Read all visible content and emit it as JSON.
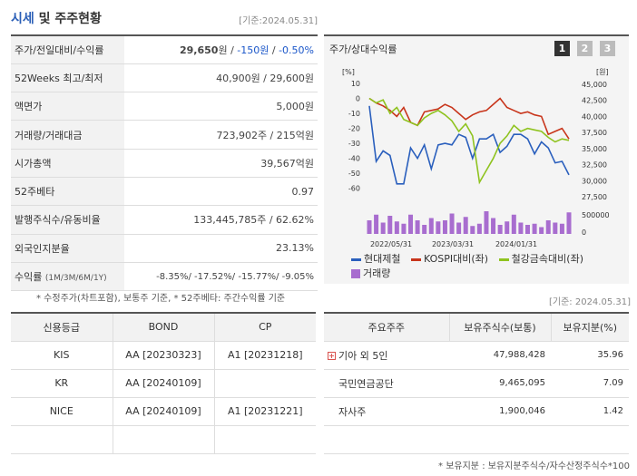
{
  "header": {
    "title_blue": "시세",
    "title_rest": " 및 주주현황",
    "base_date": "[기준:2024.05.31]"
  },
  "stock_info": {
    "rows": [
      {
        "label": "주가/전일대비/수익률"
      },
      {
        "label": "52Weeks 최고/최저",
        "value": "40,900원 / 29,600원"
      },
      {
        "label": "액면가",
        "value": "5,000원"
      },
      {
        "label": "거래량/거래대금",
        "value": "723,902주 / 215억원"
      },
      {
        "label": "시가총액",
        "value": "39,567억원"
      },
      {
        "label": "52주베타",
        "value": "0.97"
      },
      {
        "label": "발행주식수/유동비율",
        "value": "133,445,785주 / 62.62%"
      },
      {
        "label": "외국인지분율",
        "value": "23.13%"
      }
    ],
    "price": "29,650",
    "price_unit": "원",
    "price_change": "-150원",
    "price_rate": "-0.50%",
    "return_label": "수익률",
    "return_sublabel": "(1M/3M/6M/1Y)",
    "return_value": "-8.35%/ -17.52%/ -15.77%/ -9.05%",
    "note": "* 수정주가(차트포함), 보통주 기준, * 52주베타: 주간수익률 기준"
  },
  "chart_panel": {
    "title": "주가/상대수익률",
    "tabs": [
      "1",
      "2",
      "3"
    ],
    "base_date": "[기준: 2024.05.31]"
  },
  "chart_data": {
    "type": "line",
    "left_axis": {
      "label": "[%]",
      "ticks": [
        "10",
        "0",
        "-10",
        "-20",
        "-30",
        "-40",
        "-50",
        "-60"
      ],
      "range": [
        -65,
        10
      ]
    },
    "right_axis": {
      "label": "[원]",
      "ticks": [
        "45,000",
        "42,500",
        "40,000",
        "37,500",
        "35,000",
        "32,500",
        "30,000",
        "27,500"
      ],
      "range": [
        27500,
        45000
      ]
    },
    "volume_axis": {
      "ticks": [
        "500000",
        "0"
      ]
    },
    "x_ticks": [
      "2022/05/31",
      "2023/03/31",
      "2024/01/31"
    ],
    "series": [
      {
        "name": "현대제철",
        "color": "#2a5fbd",
        "axis": "left",
        "values": [
          -5,
          -42,
          -35,
          -38,
          -57,
          -57,
          -33,
          -40,
          -31,
          -47,
          -31,
          -30,
          -31,
          -24,
          -26,
          -40,
          -27,
          -27,
          -24,
          -36,
          -32,
          -24,
          -24,
          -27,
          -37,
          -29,
          -33,
          -43,
          -42,
          -51
        ]
      },
      {
        "name": "KOSPI대비(좌)",
        "color": "#c8351b",
        "axis": "left",
        "values": [
          0,
          -3,
          -5,
          -8,
          -12,
          -6,
          -16,
          -18,
          -9,
          -8,
          -7,
          -4,
          -6,
          -10,
          -14,
          -11,
          -9,
          -8,
          -4,
          0,
          -6,
          -8,
          -10,
          -9,
          -11,
          -12,
          -24,
          -22,
          -20,
          -27
        ]
      },
      {
        "name": "철강금속대비(좌)",
        "color": "#8fc31f",
        "axis": "left",
        "values": [
          0,
          -3,
          -1,
          -10,
          -6,
          -14,
          -16,
          -18,
          -13,
          -10,
          -8,
          -11,
          -15,
          -22,
          -17,
          -25,
          -56,
          -48,
          -40,
          -30,
          -25,
          -18,
          -22,
          -20,
          -21,
          -22,
          -26,
          -29,
          -27,
          -28
        ]
      }
    ],
    "volume": {
      "name": "거래량",
      "color": "#a86dcf",
      "values": [
        0.6,
        0.85,
        0.5,
        0.8,
        0.55,
        0.45,
        0.85,
        0.6,
        0.4,
        0.7,
        0.55,
        0.6,
        0.9,
        0.5,
        0.75,
        0.35,
        0.45,
        1.0,
        0.7,
        0.4,
        0.55,
        0.85,
        0.5,
        0.4,
        0.45,
        0.3,
        0.6,
        0.5,
        0.45,
        0.95
      ]
    }
  },
  "credit": {
    "headers": [
      "신용등급",
      "BOND",
      "CP"
    ],
    "rows": [
      [
        "KIS",
        "AA  [20230323]",
        "A1  [20231218]"
      ],
      [
        "KR",
        "AA  [20240109]",
        ""
      ],
      [
        "NICE",
        "AA  [20240109]",
        "A1  [20231221]"
      ],
      [
        "",
        "",
        ""
      ]
    ]
  },
  "holders": {
    "headers": [
      "주요주주",
      "보유주식수(보통)",
      "보유지분(%)"
    ],
    "rows": [
      {
        "name": "기아 외 5인",
        "shares": "47,988,428",
        "pct": "35.96",
        "expand": true
      },
      {
        "name": "국민연금공단",
        "shares": "9,465,095",
        "pct": "7.09",
        "expand": false
      },
      {
        "name": "자사주",
        "shares": "1,900,046",
        "pct": "1.42",
        "expand": false
      },
      {
        "name": "",
        "shares": "",
        "pct": "",
        "expand": false
      }
    ],
    "note": "* 보유지분 : 보유지분주식수/자수산정주식수*100"
  }
}
